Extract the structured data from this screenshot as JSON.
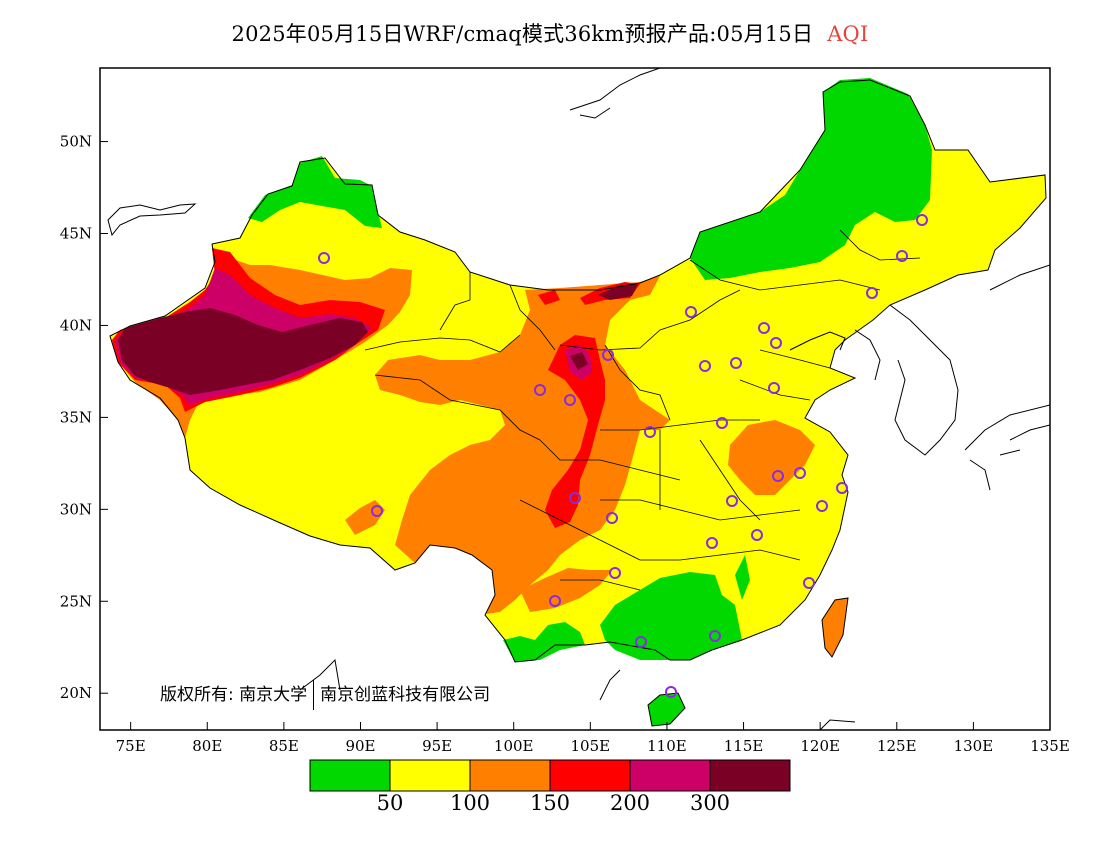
{
  "title": {
    "main": "2025年05月15日WRF/cmaq模式36km预报产品:05月15日",
    "variable": "AQI"
  },
  "map": {
    "lon_range": [
      73,
      135
    ],
    "lat_range": [
      18,
      54
    ],
    "x_ticks": [
      "75E",
      "80E",
      "85E",
      "90E",
      "95E",
      "100E",
      "105E",
      "110E",
      "115E",
      "120E",
      "125E",
      "130E",
      "135E"
    ],
    "y_ticks": [
      "50N",
      "45N",
      "40N",
      "35N",
      "30N",
      "25N",
      "20N"
    ]
  },
  "legend": {
    "colors": [
      "#00d800",
      "#ffff00",
      "#ff8000",
      "#ff0000",
      "#cc0066",
      "#7a0025"
    ],
    "labels": [
      "50",
      "100",
      "150",
      "200",
      "300"
    ]
  },
  "copyright": {
    "left": "版权所有: 南京大学",
    "right": "南京创蓝科技有限公司"
  }
}
